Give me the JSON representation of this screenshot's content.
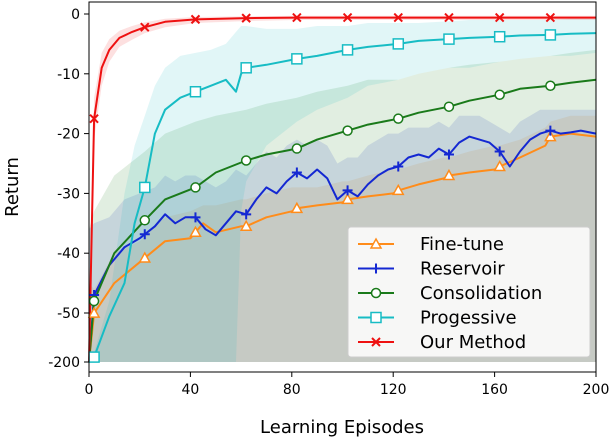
{
  "chart_data": {
    "type": "line",
    "title": "",
    "xlabel": "Learning Episodes",
    "ylabel": "Return",
    "xlim": [
      0,
      200
    ],
    "ylim": [
      -200,
      0
    ],
    "xticks": [
      0,
      40,
      80,
      120,
      160,
      200
    ],
    "yticks": [
      0,
      -10,
      -20,
      -30,
      -40,
      -50,
      -200
    ],
    "ytick_labels": [
      "0",
      "-10",
      "-20",
      "-30",
      "-40",
      "-50",
      "-200"
    ],
    "grid": false,
    "legend_position": "bottom-right",
    "series": [
      {
        "name": "Fine-tune",
        "color": "#ff8c1a",
        "marker": "triangle",
        "x": [
          0,
          2,
          10,
          20,
          30,
          40,
          45,
          50,
          60,
          62,
          70,
          80,
          82,
          90,
          100,
          102,
          110,
          120,
          122,
          130,
          140,
          142,
          150,
          160,
          162,
          170,
          180,
          182,
          190,
          200
        ],
        "y": [
          -200,
          -50.5,
          -45,
          -41.5,
          -38,
          -37.5,
          -35,
          -36.5,
          -35.5,
          -35.5,
          -34,
          -33,
          -32.5,
          -32,
          -31.5,
          -31,
          -30.5,
          -30,
          -29.5,
          -28.5,
          -27.5,
          -27,
          -26.5,
          -26,
          -25.5,
          -24,
          -22,
          -20.5,
          -20,
          -20.5
        ],
        "lower": [
          -200,
          -200,
          -200,
          -200,
          -200,
          -200,
          -200,
          -200,
          -200,
          -200,
          -200,
          -200,
          -200,
          -200,
          -200,
          -200,
          -200,
          -200,
          -200,
          -200,
          -200,
          -200,
          -200,
          -200,
          -200,
          -200,
          -200,
          -200,
          -200,
          -200
        ],
        "upper": [
          -45,
          -46,
          -40,
          -38,
          -34,
          -33,
          -32,
          -32,
          -31,
          -31,
          -30,
          -29,
          -29,
          -29,
          -28,
          -28,
          -27,
          -26,
          -26,
          -25,
          -24,
          -24,
          -23,
          -22,
          -22,
          -21,
          -19,
          -18,
          -17,
          -17
        ],
        "marker_x": [
          2,
          22,
          42,
          62,
          82,
          102,
          122,
          142,
          162,
          182
        ]
      },
      {
        "name": "Reservoir",
        "color": "#1428d2",
        "marker": "plus",
        "x": [
          0,
          2,
          8,
          14,
          20,
          26,
          30,
          34,
          38,
          42,
          46,
          50,
          54,
          58,
          62,
          66,
          70,
          74,
          78,
          82,
          86,
          90,
          94,
          98,
          102,
          106,
          110,
          114,
          118,
          122,
          126,
          130,
          134,
          138,
          142,
          146,
          150,
          154,
          158,
          162,
          166,
          170,
          174,
          178,
          182,
          186,
          190,
          194,
          200
        ],
        "y": [
          -200,
          -47,
          -42,
          -39,
          -37.5,
          -35.5,
          -33.5,
          -35,
          -34,
          -34,
          -36,
          -37,
          -35,
          -33,
          -33.5,
          -31,
          -29,
          -30,
          -28,
          -26.5,
          -27.5,
          -26,
          -27.5,
          -31,
          -29.5,
          -30.5,
          -28.5,
          -27,
          -26,
          -25.5,
          -24,
          -23.5,
          -24,
          -22.5,
          -23.5,
          -21.5,
          -20.5,
          -21,
          -21.5,
          -23,
          -25.5,
          -23,
          -21,
          -20,
          -19.5,
          -20,
          -19.8,
          -19.5,
          -20
        ],
        "lower": [
          -200,
          -200,
          -200,
          -200,
          -200,
          -200,
          -200,
          -200,
          -200,
          -200,
          -200,
          -200,
          -200,
          -200,
          -200,
          -200,
          -200,
          -200,
          -200,
          -200,
          -200,
          -200,
          -200,
          -200,
          -200,
          -200,
          -200,
          -200,
          -200,
          -200,
          -200,
          -200,
          -200,
          -200,
          -200,
          -200,
          -200,
          -200,
          -200,
          -200,
          -200,
          -200,
          -200,
          -200,
          -200,
          -200,
          -200,
          -200,
          -200
        ],
        "upper": [
          -36,
          -35,
          -34,
          -31,
          -30,
          -29,
          -27,
          -28,
          -27,
          -27,
          -28,
          -29,
          -28,
          -26,
          -27,
          -25,
          -23,
          -24,
          -22,
          -21,
          -22,
          -21,
          -22,
          -25,
          -24,
          -24,
          -22,
          -21,
          -20,
          -20,
          -19,
          -19,
          -19,
          -18,
          -19,
          -17,
          -17,
          -17,
          -18,
          -19,
          -20,
          -18,
          -17,
          -16,
          -16,
          -16,
          -16,
          -16,
          -16
        ],
        "marker_x": [
          2,
          22,
          42,
          62,
          82,
          102,
          122,
          142,
          162,
          182
        ]
      },
      {
        "name": "Consolidation",
        "color": "#1a7a1a",
        "marker": "circle",
        "x": [
          0,
          2,
          10,
          22,
          30,
          42,
          50,
          62,
          70,
          82,
          90,
          102,
          110,
          122,
          130,
          142,
          150,
          162,
          170,
          182,
          190,
          200
        ],
        "y": [
          -200,
          -48,
          -40,
          -34.5,
          -31,
          -29,
          -26.5,
          -24.5,
          -23.5,
          -22.5,
          -21,
          -19.5,
          -18.5,
          -17.5,
          -16.5,
          -15.5,
          -14.5,
          -13.5,
          -12.5,
          -12,
          -11.5,
          -11
        ],
        "lower": [
          -200,
          -200,
          -200,
          -200,
          -200,
          -200,
          -200,
          -200,
          -200,
          -200,
          -200,
          -200,
          -200,
          -200,
          -200,
          -200,
          -200,
          -200,
          -200,
          -200,
          -200,
          -200
        ],
        "upper": [
          -36,
          -33,
          -27,
          -23,
          -20,
          -18,
          -17,
          -16,
          -15,
          -14,
          -13,
          -12,
          -11,
          -11,
          -10,
          -9,
          -8.5,
          -8,
          -7.5,
          -7,
          -6.5,
          -6
        ],
        "marker_x": [
          2,
          22,
          42,
          62,
          82,
          102,
          122,
          142,
          162,
          182
        ]
      },
      {
        "name": "Progessive",
        "color": "#17bcc4",
        "marker": "square",
        "x": [
          0,
          2,
          8,
          14,
          18,
          22,
          26,
          30,
          36,
          42,
          48,
          54,
          58,
          60,
          62,
          70,
          82,
          90,
          102,
          110,
          122,
          130,
          142,
          150,
          162,
          170,
          182,
          190,
          200
        ],
        "y": [
          -200,
          -185,
          -60,
          -45,
          -35,
          -29,
          -20,
          -16,
          -14,
          -13,
          -12,
          -11,
          -13,
          -10,
          -9,
          -8.5,
          -7.5,
          -7,
          -6,
          -5.5,
          -5,
          -4.5,
          -4.2,
          -4,
          -3.8,
          -3.6,
          -3.5,
          -3.3,
          -3.2
        ],
        "lower": [
          -200,
          -200,
          -200,
          -200,
          -200,
          -200,
          -200,
          -200,
          -200,
          -200,
          -200,
          -200,
          -200,
          -33,
          -28,
          -22,
          -18,
          -16,
          -14,
          -12,
          -11,
          -10,
          -9,
          -9,
          -8,
          -7.5,
          -7,
          -7,
          -6.5
        ],
        "upper": [
          -200,
          -170,
          -48,
          -30,
          -22,
          -17,
          -12,
          -9,
          -7,
          -6.5,
          -6,
          -5,
          -3,
          -2,
          -2,
          -2.5,
          -2.5,
          -2,
          -2,
          -1.5,
          -1.5,
          -1.5,
          -1.2,
          -1,
          -1,
          -1,
          -1,
          -0.8,
          -0.8
        ],
        "marker_x": [
          2,
          22,
          42,
          62,
          82,
          102,
          122,
          142,
          162,
          182
        ]
      },
      {
        "name": "Our Method",
        "color": "#ee1111",
        "marker": "x",
        "x": [
          0,
          2,
          5,
          8,
          12,
          17,
          22,
          30,
          42,
          60,
          82,
          102,
          122,
          142,
          162,
          182,
          200
        ],
        "y": [
          -200,
          -17.5,
          -9,
          -6,
          -4,
          -3,
          -2.2,
          -1.3,
          -0.9,
          -0.7,
          -0.6,
          -0.6,
          -0.6,
          -0.6,
          -0.6,
          -0.6,
          -0.6
        ],
        "lower": [
          -200,
          -21,
          -12,
          -8,
          -5.5,
          -4.3,
          -3.2,
          -2.2,
          -1.5,
          -1.2,
          -1,
          -1,
          -1,
          -1,
          -1,
          -1,
          -1
        ],
        "upper": [
          -200,
          -14,
          -6.5,
          -4.2,
          -2.8,
          -2,
          -1.4,
          -0.8,
          -0.5,
          -0.4,
          -0.3,
          -0.3,
          -0.3,
          -0.3,
          -0.3,
          -0.3,
          -0.3
        ],
        "marker_x": [
          2,
          22,
          42,
          62,
          82,
          102,
          122,
          142,
          162,
          182
        ]
      }
    ]
  }
}
